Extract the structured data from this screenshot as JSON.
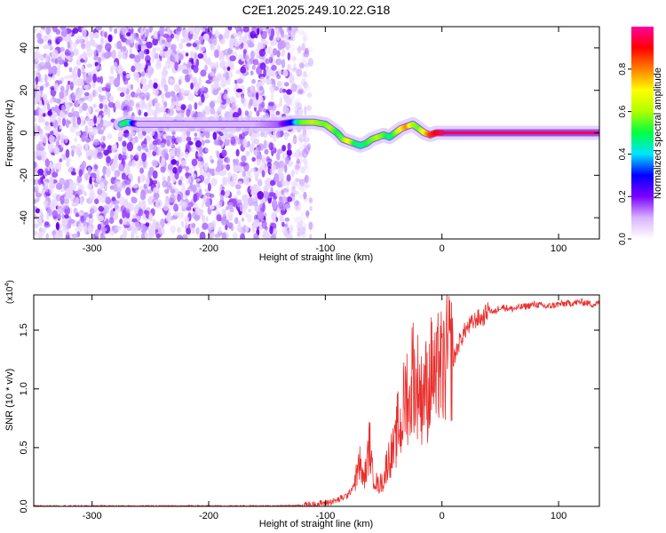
{
  "title": "C2E1.2025.249.10.22.G18",
  "chart_data": [
    {
      "type": "heatmap",
      "xlabel": "Height of straight line (km)",
      "ylabel": "Frequency (Hz)",
      "xlim": [
        -350,
        135
      ],
      "ylim": [
        -50,
        50
      ],
      "xticks": [
        "-300",
        "-200",
        "-100",
        "0",
        "100"
      ],
      "xtick_values": [
        -300,
        -200,
        -100,
        0,
        100
      ],
      "yticks": [
        "-40",
        "-20",
        "0",
        "20",
        "40"
      ],
      "ytick_values": [
        -40,
        -20,
        0,
        20,
        40
      ],
      "noise_region_x": [
        -350,
        -120
      ],
      "track": {
        "x": [
          -275,
          -270,
          -260,
          -240,
          -220,
          -200,
          -180,
          -160,
          -140,
          -128,
          -120,
          -110,
          -100,
          -95,
          -90,
          -85,
          -80,
          -75,
          -70,
          -65,
          -60,
          -55,
          -50,
          -45,
          -40,
          -35,
          -30,
          -25,
          -20,
          -15,
          -10,
          -5,
          0,
          10,
          20,
          40,
          60,
          80,
          100,
          120,
          135
        ],
        "y": [
          4,
          5,
          4,
          4,
          4,
          4,
          4,
          4,
          4,
          5,
          5,
          5,
          4,
          2,
          0,
          -3,
          -4,
          -5,
          -6,
          -5,
          -3,
          -2,
          -1,
          -2,
          0,
          2,
          3,
          4,
          2,
          0,
          -1,
          0,
          0,
          0,
          0,
          0,
          0,
          0,
          0,
          0,
          0
        ],
        "amplitude": [
          0.45,
          0.5,
          0.1,
          0.1,
          0.1,
          0.1,
          0.1,
          0.1,
          0.15,
          0.3,
          0.55,
          0.6,
          0.55,
          0.6,
          0.5,
          0.55,
          0.7,
          0.5,
          0.45,
          0.5,
          0.55,
          0.6,
          0.55,
          0.45,
          0.55,
          0.7,
          0.8,
          0.6,
          0.55,
          0.7,
          0.85,
          0.9,
          0.95,
          0.95,
          0.95,
          0.95,
          0.95,
          0.95,
          0.95,
          0.95,
          0.95
        ]
      },
      "colorbar": {
        "label": "Normalized spectral amplitude",
        "ticks": [
          "0.0",
          "0.2",
          "0.4",
          "0.6",
          "0.8"
        ],
        "tick_values": [
          0.0,
          0.2,
          0.4,
          0.6,
          0.8
        ],
        "range": [
          0,
          1
        ],
        "colormap": [
          "#ffffff",
          "#d9b3ff",
          "#7b00ff",
          "#0000ff",
          "#00e5ff",
          "#00ff40",
          "#b0ff00",
          "#ffff00",
          "#ff8000",
          "#ff0000",
          "#ff00a0"
        ]
      }
    },
    {
      "type": "line",
      "xlabel": "Height of straight line (km)",
      "ylabel": "SNR (10 * v/v)",
      "multiplier": "(x10",
      "multiplier_exp": "4",
      "xlim": [
        -350,
        135
      ],
      "ylim": [
        0,
        1.8
      ],
      "xticks": [
        "-300",
        "-200",
        "-100",
        "0",
        "100"
      ],
      "xtick_values": [
        -300,
        -200,
        -100,
        0,
        100
      ],
      "yticks": [
        "0.0",
        "0.5",
        "1.0",
        "1.5"
      ],
      "ytick_values": [
        0.0,
        0.5,
        1.0,
        1.5
      ],
      "color": "#e8302e",
      "series": [
        {
          "x": [
            -350,
            -300,
            -250,
            -200,
            -150,
            -120,
            -110,
            -100,
            -90,
            -80,
            -75,
            -70,
            -68,
            -65,
            -62,
            -60,
            -55,
            -50,
            -47,
            -45,
            -40,
            -38,
            -35,
            -33,
            -30,
            -28,
            -25,
            -22,
            -20,
            -18,
            -15,
            -12,
            -10,
            -8,
            -5,
            -2,
            0,
            5,
            10,
            15,
            20,
            25,
            30,
            35,
            40,
            45,
            50,
            60,
            70,
            80,
            90,
            100,
            110,
            120,
            130,
            135
          ],
          "y": [
            0.003,
            0.003,
            0.003,
            0.003,
            0.003,
            0.008,
            0.015,
            0.03,
            0.05,
            0.1,
            0.2,
            0.38,
            0.22,
            0.3,
            0.55,
            0.3,
            0.18,
            0.22,
            0.38,
            0.42,
            0.5,
            0.7,
            0.65,
            0.85,
            1.0,
            0.8,
            1.2,
            0.95,
            1.1,
            0.9,
            1.05,
            0.95,
            1.1,
            1.2,
            1.0,
            1.3,
            1.1,
            1.3,
            1.25,
            1.4,
            1.5,
            1.55,
            1.6,
            1.6,
            1.68,
            1.65,
            1.7,
            1.68,
            1.7,
            1.72,
            1.7,
            1.72,
            1.73,
            1.74,
            1.72,
            1.73
          ]
        }
      ]
    }
  ]
}
